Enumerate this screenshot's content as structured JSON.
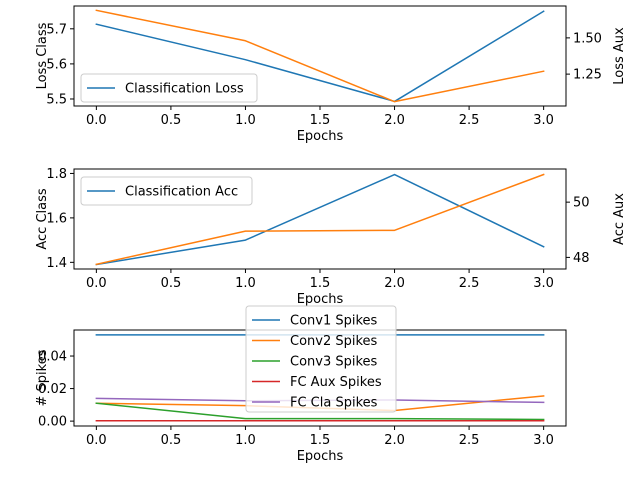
{
  "chart_data": [
    {
      "type": "line",
      "xlabel": "Epochs",
      "ylabel": "Loss Class",
      "y2label": "Loss Aux",
      "xlim": [
        -0.15,
        3.15
      ],
      "xticks": [
        0.0,
        0.5,
        1.0,
        1.5,
        2.0,
        2.5,
        3.0
      ],
      "xtick_labels": [
        "0.0",
        "0.5",
        "1.0",
        "1.5",
        "2.0",
        "2.5",
        "3.0"
      ],
      "ylim": [
        5.48,
        5.765
      ],
      "yticks": [
        5.5,
        5.6,
        5.7
      ],
      "ytick_labels": [
        "5.5",
        "5.6",
        "5.7"
      ],
      "y2lim": [
        1.03,
        1.72
      ],
      "y2ticks": [
        1.25,
        1.5
      ],
      "y2tick_labels": [
        "1.25",
        "1.50"
      ],
      "legend_position": "lower-left",
      "series": [
        {
          "name": "Classification Loss",
          "axis": "left",
          "color": "#1f77b4",
          "x": [
            0,
            1,
            2,
            3
          ],
          "values": [
            5.713,
            5.612,
            5.493,
            5.75
          ]
        },
        {
          "axis": "right",
          "color": "#ff7f0e",
          "x": [
            0,
            1,
            2,
            3
          ],
          "values": [
            1.69,
            1.48,
            1.06,
            1.27
          ]
        }
      ]
    },
    {
      "type": "line",
      "xlabel": "Epochs",
      "ylabel": "Acc Class",
      "y2label": "Acc Aux",
      "xlim": [
        -0.15,
        3.15
      ],
      "xticks": [
        0.0,
        0.5,
        1.0,
        1.5,
        2.0,
        2.5,
        3.0
      ],
      "xtick_labels": [
        "0.0",
        "0.5",
        "1.0",
        "1.5",
        "2.0",
        "2.5",
        "3.0"
      ],
      "ylim": [
        1.37,
        1.82
      ],
      "yticks": [
        1.4,
        1.6,
        1.8
      ],
      "ytick_labels": [
        "1.4",
        "1.6",
        "1.8"
      ],
      "y2lim": [
        47.58,
        51.2
      ],
      "y2ticks": [
        48,
        50
      ],
      "y2tick_labels": [
        "48",
        "50"
      ],
      "legend_position": "upper-left",
      "series": [
        {
          "name": "Classification Acc",
          "axis": "left",
          "color": "#1f77b4",
          "x": [
            0,
            1,
            2,
            3
          ],
          "values": [
            1.39,
            1.5,
            1.795,
            1.47
          ]
        },
        {
          "axis": "right",
          "color": "#ff7f0e",
          "x": [
            0,
            1,
            2,
            3
          ],
          "values": [
            47.75,
            48.95,
            48.98,
            51.0
          ]
        }
      ]
    },
    {
      "type": "line",
      "xlabel": "Epochs",
      "ylabel": "# Spikes",
      "xlim": [
        -0.15,
        3.15
      ],
      "xticks": [
        0.0,
        0.5,
        1.0,
        1.5,
        2.0,
        2.5,
        3.0
      ],
      "xtick_labels": [
        "0.0",
        "0.5",
        "1.0",
        "1.5",
        "2.0",
        "2.5",
        "3.0"
      ],
      "ylim": [
        -0.003,
        0.056
      ],
      "yticks": [
        0.0,
        0.02,
        0.04
      ],
      "ytick_labels": [
        "0.00",
        "0.02",
        "0.04"
      ],
      "legend_position": "upper-center",
      "series": [
        {
          "name": "Conv1 Spikes",
          "color": "#1f77b4",
          "x": [
            0,
            1,
            2,
            3
          ],
          "values": [
            0.053,
            0.053,
            0.053,
            0.053
          ]
        },
        {
          "name": "Conv2 Spikes",
          "color": "#ff7f0e",
          "x": [
            0,
            1,
            2,
            3
          ],
          "values": [
            0.011,
            0.0095,
            0.0065,
            0.0155
          ]
        },
        {
          "name": "Conv3 Spikes",
          "color": "#2ca02c",
          "x": [
            0,
            1,
            2,
            3
          ],
          "values": [
            0.011,
            0.0015,
            0.0015,
            0.001
          ]
        },
        {
          "name": "FC Aux Spikes",
          "color": "#d62728",
          "x": [
            0,
            1,
            2,
            3
          ],
          "values": [
            0.0002,
            0.0002,
            0.0002,
            0.0002
          ]
        },
        {
          "name": "FC Cla Spikes",
          "color": "#9467bd",
          "x": [
            0,
            1,
            2,
            3
          ],
          "values": [
            0.014,
            0.0125,
            0.013,
            0.0115
          ]
        }
      ]
    }
  ]
}
